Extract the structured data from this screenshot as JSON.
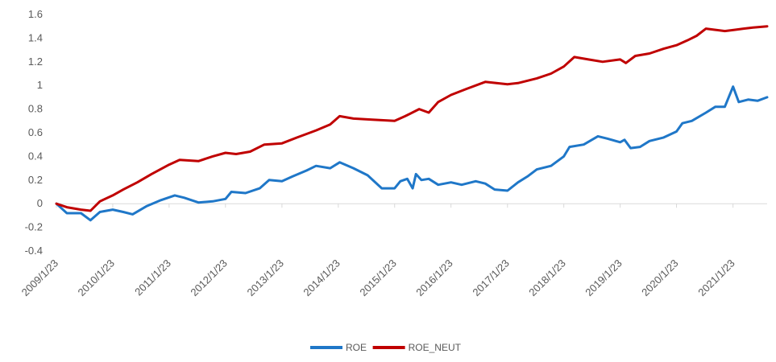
{
  "chart_data": {
    "type": "line",
    "title": "",
    "xlabel": "",
    "ylabel": "",
    "ylim": [
      -0.4,
      1.6
    ],
    "yticks": [
      -0.4,
      -0.2,
      0,
      0.2,
      0.4,
      0.6,
      0.8,
      1,
      1.2,
      1.4,
      1.6
    ],
    "ytick_labels": [
      "-0.4",
      "-0.2",
      "0",
      "0.2",
      "0.4",
      "0.6",
      "0.8",
      "1",
      "1.2",
      "1.4",
      "1.6"
    ],
    "xlim": [
      "2009-01-23",
      "2021-09-01"
    ],
    "xticks": [
      "2009-01-23",
      "2010-01-23",
      "2011-01-23",
      "2012-01-23",
      "2013-01-23",
      "2014-01-23",
      "2015-01-23",
      "2016-01-23",
      "2017-01-23",
      "2018-01-23",
      "2019-01-23",
      "2020-01-23",
      "2021-01-23"
    ],
    "xtick_labels": [
      "2009/1/23",
      "2010/1/23",
      "2011/1/23",
      "2012/1/23",
      "2013/1/23",
      "2014/1/23",
      "2015/1/23",
      "2016/1/23",
      "2017/1/23",
      "2018/1/23",
      "2019/1/23",
      "2020/1/23",
      "2021/1/23"
    ],
    "grid": false,
    "legend_position": "bottom",
    "series": [
      {
        "name": "ROE",
        "color": "#1F77C8",
        "points": [
          [
            "2009-01-23",
            0.0
          ],
          [
            "2009-04-01",
            -0.08
          ],
          [
            "2009-07-01",
            -0.08
          ],
          [
            "2009-09-01",
            -0.14
          ],
          [
            "2009-11-01",
            -0.07
          ],
          [
            "2010-01-23",
            -0.05
          ],
          [
            "2010-04-01",
            -0.07
          ],
          [
            "2010-06-01",
            -0.09
          ],
          [
            "2010-09-01",
            -0.02
          ],
          [
            "2010-12-01",
            0.03
          ],
          [
            "2011-03-01",
            0.07
          ],
          [
            "2011-05-01",
            0.05
          ],
          [
            "2011-08-01",
            0.01
          ],
          [
            "2011-11-01",
            0.02
          ],
          [
            "2012-01-23",
            0.04
          ],
          [
            "2012-03-01",
            0.1
          ],
          [
            "2012-06-01",
            0.09
          ],
          [
            "2012-09-01",
            0.13
          ],
          [
            "2012-11-01",
            0.2
          ],
          [
            "2013-01-23",
            0.19
          ],
          [
            "2013-04-01",
            0.23
          ],
          [
            "2013-07-01",
            0.28
          ],
          [
            "2013-09-01",
            0.32
          ],
          [
            "2013-12-01",
            0.3
          ],
          [
            "2014-02-01",
            0.35
          ],
          [
            "2014-05-01",
            0.3
          ],
          [
            "2014-08-01",
            0.24
          ],
          [
            "2014-11-01",
            0.13
          ],
          [
            "2015-01-23",
            0.13
          ],
          [
            "2015-03-01",
            0.19
          ],
          [
            "2015-04-15",
            0.21
          ],
          [
            "2015-05-20",
            0.13
          ],
          [
            "2015-06-10",
            0.25
          ],
          [
            "2015-07-15",
            0.2
          ],
          [
            "2015-09-01",
            0.21
          ],
          [
            "2015-11-01",
            0.16
          ],
          [
            "2016-01-23",
            0.18
          ],
          [
            "2016-04-01",
            0.16
          ],
          [
            "2016-07-01",
            0.19
          ],
          [
            "2016-09-01",
            0.17
          ],
          [
            "2016-11-01",
            0.12
          ],
          [
            "2017-01-23",
            0.11
          ],
          [
            "2017-04-01",
            0.18
          ],
          [
            "2017-06-01",
            0.23
          ],
          [
            "2017-08-01",
            0.29
          ],
          [
            "2017-11-01",
            0.32
          ],
          [
            "2018-01-23",
            0.4
          ],
          [
            "2018-03-01",
            0.48
          ],
          [
            "2018-06-01",
            0.5
          ],
          [
            "2018-09-01",
            0.57
          ],
          [
            "2018-11-01",
            0.55
          ],
          [
            "2019-01-23",
            0.52
          ],
          [
            "2019-02-20",
            0.54
          ],
          [
            "2019-04-01",
            0.47
          ],
          [
            "2019-06-01",
            0.48
          ],
          [
            "2019-08-01",
            0.53
          ],
          [
            "2019-11-01",
            0.56
          ],
          [
            "2020-01-23",
            0.61
          ],
          [
            "2020-03-01",
            0.68
          ],
          [
            "2020-05-01",
            0.7
          ],
          [
            "2020-08-01",
            0.77
          ],
          [
            "2020-10-01",
            0.82
          ],
          [
            "2020-12-01",
            0.82
          ],
          [
            "2021-01-23",
            0.99
          ],
          [
            "2021-03-01",
            0.86
          ],
          [
            "2021-05-01",
            0.88
          ],
          [
            "2021-07-01",
            0.87
          ],
          [
            "2021-09-01",
            0.9
          ]
        ]
      },
      {
        "name": "ROE_NEUT",
        "color": "#C00000",
        "points": [
          [
            "2009-01-23",
            0.0
          ],
          [
            "2009-04-01",
            -0.03
          ],
          [
            "2009-07-01",
            -0.05
          ],
          [
            "2009-09-01",
            -0.06
          ],
          [
            "2009-11-01",
            0.02
          ],
          [
            "2010-01-23",
            0.07
          ],
          [
            "2010-04-01",
            0.12
          ],
          [
            "2010-07-01",
            0.18
          ],
          [
            "2010-10-01",
            0.25
          ],
          [
            "2011-01-23",
            0.33
          ],
          [
            "2011-04-01",
            0.37
          ],
          [
            "2011-08-01",
            0.36
          ],
          [
            "2011-11-01",
            0.4
          ],
          [
            "2012-01-23",
            0.43
          ],
          [
            "2012-04-01",
            0.42
          ],
          [
            "2012-07-01",
            0.44
          ],
          [
            "2012-10-01",
            0.5
          ],
          [
            "2013-01-23",
            0.51
          ],
          [
            "2013-05-01",
            0.56
          ],
          [
            "2013-09-01",
            0.62
          ],
          [
            "2013-12-01",
            0.67
          ],
          [
            "2014-02-01",
            0.74
          ],
          [
            "2014-05-01",
            0.72
          ],
          [
            "2014-09-01",
            0.71
          ],
          [
            "2015-01-23",
            0.7
          ],
          [
            "2015-04-01",
            0.74
          ],
          [
            "2015-07-01",
            0.8
          ],
          [
            "2015-09-01",
            0.77
          ],
          [
            "2015-11-01",
            0.86
          ],
          [
            "2016-01-23",
            0.92
          ],
          [
            "2016-05-01",
            0.97
          ],
          [
            "2016-09-01",
            1.03
          ],
          [
            "2017-01-23",
            1.01
          ],
          [
            "2017-04-01",
            1.02
          ],
          [
            "2017-08-01",
            1.06
          ],
          [
            "2017-11-01",
            1.1
          ],
          [
            "2018-01-23",
            1.16
          ],
          [
            "2018-04-01",
            1.24
          ],
          [
            "2018-07-01",
            1.22
          ],
          [
            "2018-10-01",
            1.2
          ],
          [
            "2019-01-23",
            1.22
          ],
          [
            "2019-03-01",
            1.19
          ],
          [
            "2019-05-01",
            1.25
          ],
          [
            "2019-08-01",
            1.27
          ],
          [
            "2019-11-01",
            1.31
          ],
          [
            "2020-01-23",
            1.34
          ],
          [
            "2020-04-01",
            1.38
          ],
          [
            "2020-06-01",
            1.42
          ],
          [
            "2020-08-01",
            1.48
          ],
          [
            "2020-10-01",
            1.47
          ],
          [
            "2020-12-01",
            1.46
          ],
          [
            "2021-02-01",
            1.47
          ],
          [
            "2021-04-01",
            1.48
          ],
          [
            "2021-06-01",
            1.49
          ],
          [
            "2021-09-01",
            1.5
          ]
        ]
      }
    ]
  }
}
